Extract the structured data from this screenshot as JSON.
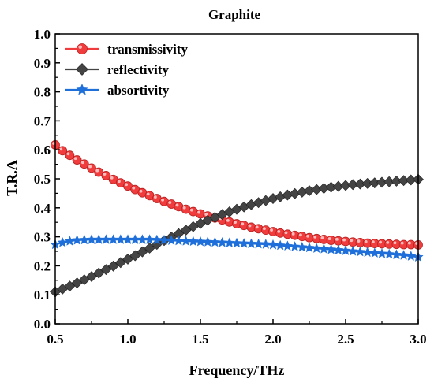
{
  "chart_data": {
    "type": "line",
    "title": "Graphite",
    "xlabel": "Frequency/THz",
    "ylabel": "T.R.A",
    "xlim": [
      0.5,
      3.0
    ],
    "ylim": [
      0.0,
      1.0
    ],
    "xticks": [
      "0.5",
      "1.0",
      "1.5",
      "2.0",
      "2.5",
      "3.0"
    ],
    "yticks": [
      "0.0",
      "0.1",
      "0.2",
      "0.3",
      "0.4",
      "0.5",
      "0.6",
      "0.7",
      "0.8",
      "0.9",
      "1.0"
    ],
    "grid": false,
    "legend_position": "top-left",
    "x": [
      0.5,
      0.55,
      0.6,
      0.65,
      0.7,
      0.75,
      0.8,
      0.85,
      0.9,
      0.95,
      1.0,
      1.05,
      1.1,
      1.15,
      1.2,
      1.25,
      1.3,
      1.35,
      1.4,
      1.45,
      1.5,
      1.55,
      1.6,
      1.65,
      1.7,
      1.75,
      1.8,
      1.85,
      1.9,
      1.95,
      2.0,
      2.05,
      2.1,
      2.15,
      2.2,
      2.25,
      2.3,
      2.35,
      2.4,
      2.45,
      2.5,
      2.55,
      2.6,
      2.65,
      2.7,
      2.75,
      2.8,
      2.85,
      2.9,
      2.95,
      3.0
    ],
    "series": [
      {
        "name": "transmissivity",
        "color": "#f03c3c",
        "marker": "circle",
        "values": [
          0.617,
          0.597,
          0.581,
          0.565,
          0.551,
          0.537,
          0.523,
          0.511,
          0.498,
          0.486,
          0.475,
          0.463,
          0.452,
          0.442,
          0.432,
          0.422,
          0.413,
          0.404,
          0.395,
          0.387,
          0.379,
          0.372,
          0.365,
          0.358,
          0.351,
          0.345,
          0.339,
          0.333,
          0.328,
          0.323,
          0.318,
          0.313,
          0.309,
          0.305,
          0.301,
          0.297,
          0.294,
          0.291,
          0.288,
          0.286,
          0.284,
          0.282,
          0.28,
          0.278,
          0.277,
          0.276,
          0.275,
          0.274,
          0.273,
          0.273,
          0.272
        ]
      },
      {
        "name": "reflectivity",
        "color": "#444444",
        "marker": "diamond",
        "values": [
          0.11,
          0.12,
          0.13,
          0.141,
          0.152,
          0.163,
          0.175,
          0.187,
          0.199,
          0.211,
          0.223,
          0.235,
          0.248,
          0.261,
          0.274,
          0.287,
          0.299,
          0.311,
          0.323,
          0.335,
          0.346,
          0.357,
          0.367,
          0.377,
          0.386,
          0.395,
          0.403,
          0.411,
          0.418,
          0.425,
          0.432,
          0.438,
          0.444,
          0.449,
          0.454,
          0.459,
          0.463,
          0.467,
          0.471,
          0.474,
          0.477,
          0.48,
          0.482,
          0.484,
          0.486,
          0.488,
          0.49,
          0.492,
          0.494,
          0.496,
          0.498
        ]
      },
      {
        "name": "absortivity",
        "color": "#1e6fd9",
        "marker": "star",
        "values": [
          0.273,
          0.28,
          0.285,
          0.288,
          0.289,
          0.29,
          0.29,
          0.29,
          0.29,
          0.29,
          0.29,
          0.29,
          0.29,
          0.29,
          0.289,
          0.288,
          0.287,
          0.286,
          0.285,
          0.284,
          0.283,
          0.282,
          0.281,
          0.28,
          0.279,
          0.278,
          0.277,
          0.276,
          0.275,
          0.274,
          0.272,
          0.27,
          0.268,
          0.266,
          0.264,
          0.262,
          0.26,
          0.258,
          0.256,
          0.254,
          0.252,
          0.25,
          0.248,
          0.246,
          0.244,
          0.242,
          0.24,
          0.238,
          0.236,
          0.233,
          0.23
        ]
      }
    ]
  }
}
